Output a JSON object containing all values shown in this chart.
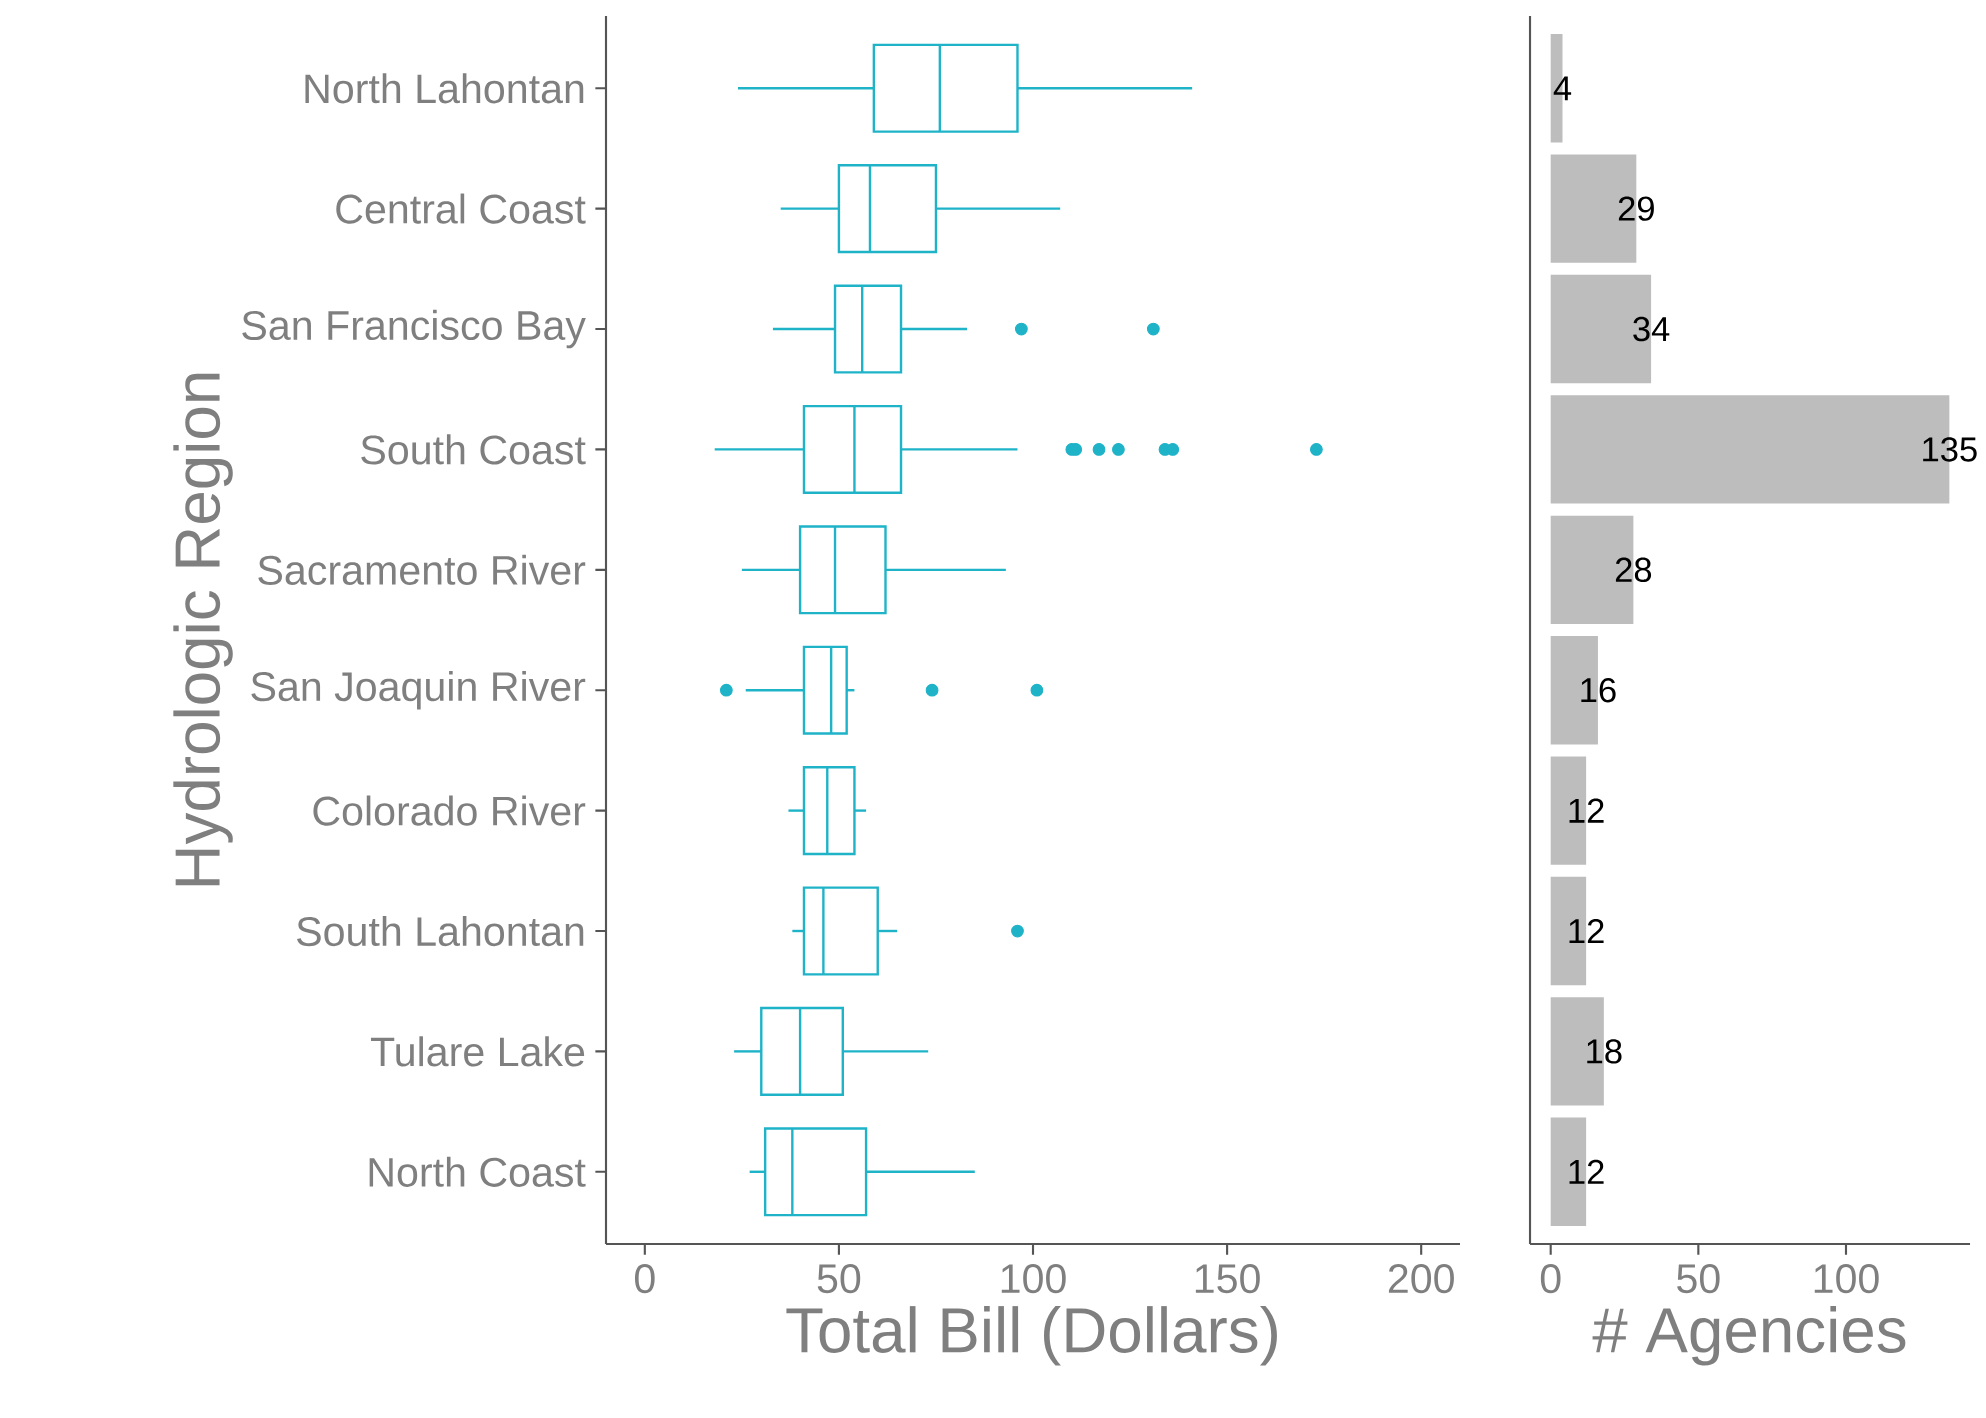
{
  "chart_data": [
    {
      "type": "box",
      "orientation": "horizontal",
      "color": "#1fb3c8",
      "categories": [
        "North Lahontan",
        "Central Coast",
        "San Francisco Bay",
        "South Coast",
        "Sacramento River",
        "San Joaquin River",
        "Colorado River",
        "South Lahontan",
        "Tulare Lake",
        "North Coast"
      ],
      "boxes": [
        {
          "low": 24,
          "q1": 59,
          "median": 76,
          "q3": 96,
          "high": 141
        },
        {
          "low": 35,
          "q1": 50,
          "median": 58,
          "q3": 75,
          "high": 107
        },
        {
          "low": 33,
          "q1": 49,
          "median": 56,
          "q3": 66,
          "high": 83,
          "outliers": [
            97,
            131
          ]
        },
        {
          "low": 18,
          "q1": 41,
          "median": 54,
          "q3": 66,
          "high": 96,
          "outliers": [
            110,
            111,
            117,
            122,
            134,
            136,
            173
          ]
        },
        {
          "low": 25,
          "q1": 40,
          "median": 49,
          "q3": 62,
          "high": 93
        },
        {
          "low": 26,
          "q1": 41,
          "median": 48,
          "q3": 52,
          "high": 54,
          "outliers": [
            21,
            74,
            101
          ]
        },
        {
          "low": 37,
          "q1": 41,
          "median": 47,
          "q3": 54,
          "high": 57
        },
        {
          "low": 38,
          "q1": 41,
          "median": 46,
          "q3": 60,
          "high": 65,
          "outliers": [
            96
          ]
        },
        {
          "low": 23,
          "q1": 30,
          "median": 40,
          "q3": 51,
          "high": 73
        },
        {
          "low": 27,
          "q1": 31,
          "median": 38,
          "q3": 57,
          "high": 85
        }
      ],
      "xlim": [
        -10,
        210
      ],
      "xticks": [
        0,
        50,
        100,
        150,
        200
      ],
      "xlabel": "Total Bill (Dollars)",
      "ylabel": "Hydrologic Region"
    },
    {
      "type": "bar",
      "orientation": "horizontal",
      "color": "#bdbdbd",
      "tick_labels": "x",
      "data_labels": true,
      "categories": [
        null,
        null,
        null,
        null,
        null,
        null,
        null,
        null,
        null,
        null
      ],
      "values": [
        4,
        29,
        34,
        135,
        28,
        16,
        12,
        12,
        18,
        12
      ],
      "xlim": [
        -7,
        142
      ],
      "xticks": [
        0,
        50,
        100
      ],
      "xlabel": "# Agencies"
    }
  ]
}
